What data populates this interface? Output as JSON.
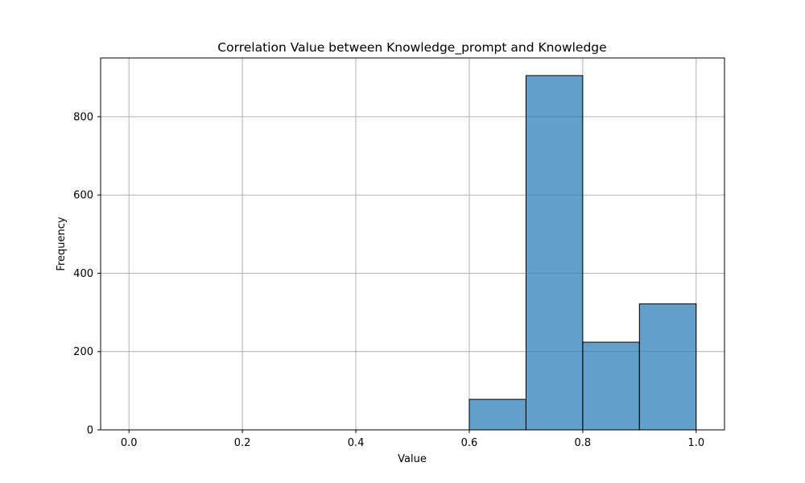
{
  "chart_data": {
    "type": "bar",
    "title": "Correlation Value between Knowledge_prompt and Knowledge",
    "xlabel": "Value",
    "ylabel": "Frequency",
    "xlim": [
      -0.05,
      1.05
    ],
    "ylim": [
      0,
      950
    ],
    "xticks": [
      0.0,
      0.2,
      0.4,
      0.6,
      0.8,
      1.0
    ],
    "xtick_labels": [
      "0.0",
      "0.2",
      "0.4",
      "0.6",
      "0.8",
      "1.0"
    ],
    "yticks": [
      0,
      200,
      400,
      600,
      800
    ],
    "ytick_labels": [
      "0",
      "200",
      "400",
      "600",
      "800"
    ],
    "grid": true,
    "bin_width": 0.1,
    "bins": [
      {
        "x_start": 0.0,
        "x_end": 0.1,
        "count": 0
      },
      {
        "x_start": 0.1,
        "x_end": 0.2,
        "count": 0
      },
      {
        "x_start": 0.2,
        "x_end": 0.3,
        "count": 0
      },
      {
        "x_start": 0.3,
        "x_end": 0.4,
        "count": 0
      },
      {
        "x_start": 0.4,
        "x_end": 0.5,
        "count": 0
      },
      {
        "x_start": 0.5,
        "x_end": 0.6,
        "count": 0
      },
      {
        "x_start": 0.6,
        "x_end": 0.7,
        "count": 78
      },
      {
        "x_start": 0.7,
        "x_end": 0.8,
        "count": 905
      },
      {
        "x_start": 0.8,
        "x_end": 0.9,
        "count": 224
      },
      {
        "x_start": 0.9,
        "x_end": 1.0,
        "count": 322
      }
    ],
    "colors": {
      "bar_fill": "#1f77b4",
      "bar_edge": "#000000",
      "grid": "#b0b0b0"
    }
  }
}
